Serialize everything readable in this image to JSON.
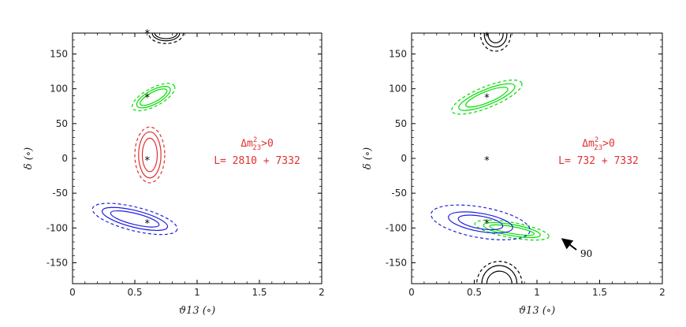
{
  "chart_data": [
    {
      "type": "contour",
      "xlabel": "ϑ13 (∘)",
      "ylabel": "δ (∘)",
      "xlim": [
        0,
        2
      ],
      "ylim": [
        -180,
        180
      ],
      "xticks": [
        "0",
        "0.5",
        "1",
        "1.5",
        "2"
      ],
      "yticks": [
        "150",
        "100",
        "50",
        "0",
        "-50",
        "-100",
        "-150"
      ],
      "annotation": {
        "delta": "Δm",
        "sup": "2",
        "sub": "23",
        "rest": ">0",
        "baseline": "L=  2810 + 7332"
      },
      "colors": {
        "black": "#000000",
        "green": "#00dd00",
        "red": "#e03030",
        "blue": "#1f1fe0"
      },
      "best_fits": [
        {
          "color": "black",
          "x": 0.6,
          "y": 180
        },
        {
          "color": "green",
          "x": 0.6,
          "y": 88
        },
        {
          "color": "red",
          "x": 0.6,
          "y": -2
        },
        {
          "color": "blue",
          "x": 0.6,
          "y": -93
        }
      ],
      "contours": [
        {
          "color": "black",
          "x": [
            0.75,
            0.75,
            0.75
          ],
          "y": [
            180,
            180,
            180
          ],
          "rx": [
            0.09,
            0.11,
            0.14
          ],
          "ry": [
            8,
            11,
            15
          ],
          "rot": 0
        },
        {
          "color": "green",
          "x": [
            0.65,
            0.65,
            0.65
          ],
          "y": [
            88,
            88,
            88
          ],
          "rx": [
            0.12,
            0.15,
            0.19
          ],
          "ry": [
            7,
            10,
            13
          ],
          "rot": 28
        },
        {
          "color": "red",
          "x": [
            0.62,
            0.62,
            0.62
          ],
          "y": [
            5,
            5,
            5
          ],
          "rx": [
            0.06,
            0.09,
            0.12
          ],
          "ry": [
            24,
            33,
            40
          ],
          "rot": 0
        },
        {
          "color": "blue",
          "x": [
            0.5,
            0.5,
            0.5
          ],
          "y": [
            -87,
            -87,
            -87
          ],
          "rx": [
            0.2,
            0.27,
            0.35
          ],
          "ry": [
            8,
            12,
            17
          ],
          "rot": -14
        }
      ]
    },
    {
      "type": "contour",
      "xlabel": "ϑ13 (∘)",
      "ylabel": "δ (∘)",
      "xlim": [
        0,
        2
      ],
      "ylim": [
        -180,
        180
      ],
      "xticks": [
        "0",
        "0.5",
        "1",
        "1.5",
        "2"
      ],
      "yticks": [
        "150",
        "100",
        "50",
        "0",
        "-50",
        "-100",
        "-150"
      ],
      "annotation": {
        "delta": "Δm",
        "sup": "2",
        "sub": "23",
        "rest": ">0",
        "baseline": "L=  732 + 7332"
      },
      "marker_label": "90",
      "colors": {
        "black": "#000000",
        "green": "#00dd00",
        "red": "#e03030",
        "blue": "#1f1fe0"
      },
      "best_fits": [
        {
          "color": "black",
          "x": 0.6,
          "y": 176
        },
        {
          "color": "green",
          "x": 0.6,
          "y": 88
        },
        {
          "color": "red",
          "x": 0.6,
          "y": -2
        },
        {
          "color": "blue",
          "x": 0.6,
          "y": -93
        }
      ],
      "contours": [
        {
          "color": "black",
          "x": [
            0.67,
            0.67,
            0.67
          ],
          "y": [
            178,
            178,
            178
          ],
          "rx": [
            0.06,
            0.09,
            0.12
          ],
          "ry": [
            12,
            18,
            24
          ],
          "rot": 0
        },
        {
          "color": "black",
          "x": [
            0.7,
            0.7,
            0.7
          ],
          "y": [
            -180,
            -180,
            -180
          ],
          "rx": [
            0.1,
            0.14,
            0.18
          ],
          "ry": [
            18,
            26,
            32
          ],
          "rot": 0
        },
        {
          "color": "green",
          "x": [
            0.6,
            0.6,
            0.6
          ],
          "y": [
            88,
            88,
            88
          ],
          "rx": [
            0.18,
            0.24,
            0.3
          ],
          "ry": [
            8,
            11,
            15
          ],
          "rot": 22
        },
        {
          "color": "green",
          "x": [
            0.8,
            0.8,
            0.8
          ],
          "y": [
            -103,
            -103,
            -103
          ],
          "rx": [
            0.18,
            0.23,
            0.3
          ],
          "ry": [
            5,
            8,
            11
          ],
          "rot": -10
        },
        {
          "color": "blue",
          "x": [
            0.55,
            0.55,
            0.55
          ],
          "y": [
            -92,
            -92,
            -92
          ],
          "rx": [
            0.18,
            0.26,
            0.4
          ],
          "ry": [
            9,
            13,
            22
          ],
          "rot": -10
        }
      ]
    }
  ]
}
